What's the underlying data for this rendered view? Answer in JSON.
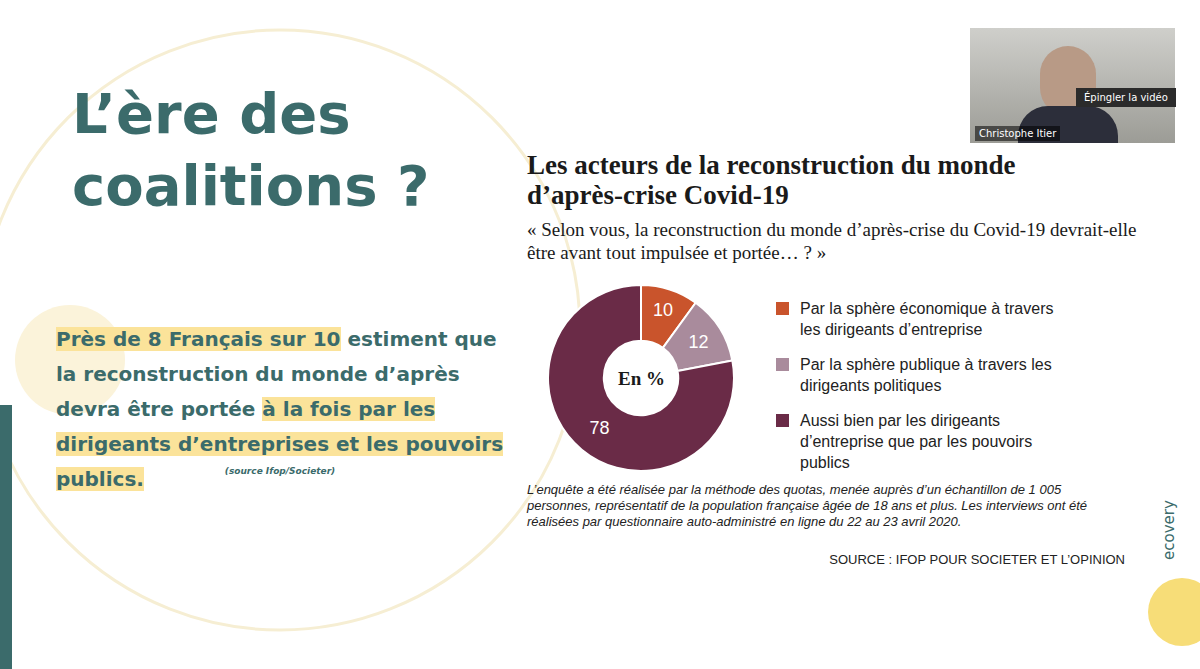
{
  "slide": {
    "title": "L’ère des coalitions ?",
    "statement": [
      {
        "text": "Près de 8 Français sur 10",
        "highlight": true
      },
      {
        "text": " estiment que la reconstruction du monde d’après devra être portée ",
        "highlight": false
      },
      {
        "text": "à la fois par les dirigeants d’entreprises et les pouvoirs publics.",
        "highlight": true
      }
    ],
    "statement_source": "(source Ifop/Societer)",
    "video": {
      "name": "Christophe Itier",
      "button": "Épingler la vidéo"
    },
    "brand": "ecovery"
  },
  "chart_data": {
    "type": "pie",
    "title": "Les acteurs de la reconstruction du monde d’après-crise Covid-19",
    "subtitle": "« Selon vous, la reconstruction du monde d’après-crise du Covid-19 devrait-elle être avant tout impulsée et portée… ? »",
    "center_label": "En %",
    "categories": [
      "Par la sphère économique à travers les dirigeants d’entreprise",
      "Par la sphère publique à travers les dirigeants politiques",
      "Aussi bien par les dirigeants d’entreprise que par les pouvoirs publics"
    ],
    "values": [
      10,
      12,
      78
    ],
    "colors": [
      "#c9542c",
      "#a98b9c",
      "#6a2b47"
    ],
    "data_labels": true,
    "legend": "right",
    "note": "L’enquête a été réalisée par la méthode des quotas, menée auprès d’un échantillon de 1 005 personnes, représentatif de la population française âgée de 18 ans et plus. Les interviews ont été réalisées par questionnaire auto-administré en ligne du 22 au 23 avril 2020.",
    "source": "SOURCE : IFOP POUR SOCIETER ET L’OPINION"
  }
}
